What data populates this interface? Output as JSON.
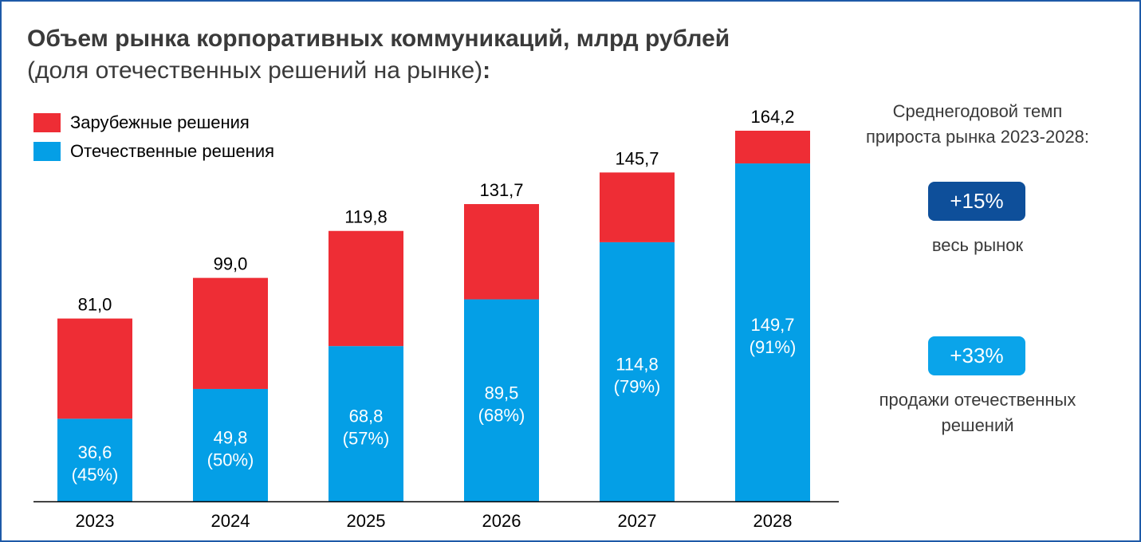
{
  "chart_data": {
    "type": "bar",
    "stacked": true,
    "title": "Объем рынка корпоративных коммуникаций, млрд рублей",
    "subtitle": "(доля отечественных решений на рынке)",
    "subtitle_colon": ":",
    "categories": [
      "2023",
      "2024",
      "2025",
      "2026",
      "2027",
      "2028"
    ],
    "series": [
      {
        "name": "Отечественные решения",
        "color": "#049fe6",
        "values": [
          36.6,
          49.8,
          68.8,
          89.5,
          114.8,
          149.7
        ]
      },
      {
        "name": "Зарубежные решения",
        "color": "#ee2d35",
        "values": [
          44.4,
          49.2,
          51.0,
          42.2,
          30.9,
          14.5
        ]
      }
    ],
    "totals": [
      81.0,
      99.0,
      119.8,
      131.7,
      145.7,
      164.2
    ],
    "total_labels": [
      "81,0",
      "99,0",
      "119,8",
      "131,7",
      "145,7",
      "164,2"
    ],
    "domestic_labels": [
      "36,6",
      "49,8",
      "68,8",
      "89,5",
      "114,8",
      "149,7"
    ],
    "domestic_share_labels": [
      "(45%)",
      "(50%)",
      "(57%)",
      "(68%)",
      "(79%)",
      "(91%)"
    ],
    "legend": [
      "Зарубежные решения",
      "Отечественные решения"
    ],
    "legend_position": "top-left",
    "ylim": [
      0,
      164.2
    ],
    "grid": false,
    "axis_color": "#000000"
  },
  "side_panel": {
    "title_line1": "Среднегодовой темп",
    "title_line2": "прироста рынка 2023-2028:",
    "badges": [
      {
        "value": "+15%",
        "label_line1": "весь рынок",
        "label_line2": "",
        "color": "#0e4f9a"
      },
      {
        "value": "+33%",
        "label_line1": "продажи отечественных",
        "label_line2": "решений",
        "color": "#0aa4ea"
      }
    ]
  },
  "frame_color": "#1e5aa8",
  "text_color": "#3a3a3a"
}
